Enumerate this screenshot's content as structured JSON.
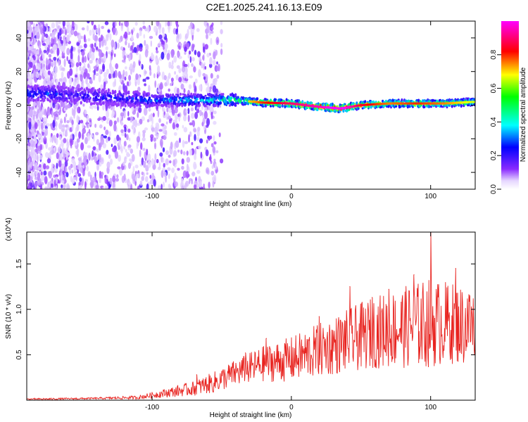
{
  "title": "C2E1.2025.241.16.13.E09",
  "chart_data": [
    {
      "type": "heatmap",
      "name": "spectrogram",
      "xlabel": "Height of straight line (km)",
      "ylabel": "Frequency (Hz)",
      "xlim": [
        -190,
        132
      ],
      "ylim": [
        -50,
        50
      ],
      "xticks": [
        -100,
        0,
        100
      ],
      "yticks": [
        -40,
        -20,
        0,
        20,
        40
      ],
      "colorbar": {
        "label": "Normalized spectral amplitude",
        "range": [
          0,
          1
        ],
        "ticks": [
          "0.0",
          "0.2",
          "0.4",
          "0.6",
          "0.8"
        ]
      },
      "ridge": [
        {
          "x": -180,
          "f": 7,
          "amp": 0.35
        },
        {
          "x": -160,
          "f": 6,
          "amp": 0.3
        },
        {
          "x": -140,
          "f": 5,
          "amp": 0.3
        },
        {
          "x": -120,
          "f": 4,
          "amp": 0.3
        },
        {
          "x": -100,
          "f": 3,
          "amp": 0.35
        },
        {
          "x": -80,
          "f": 3,
          "amp": 0.4
        },
        {
          "x": -60,
          "f": 3,
          "amp": 0.45
        },
        {
          "x": -40,
          "f": 3,
          "amp": 0.55
        },
        {
          "x": -20,
          "f": 1.5,
          "amp": 0.75
        },
        {
          "x": 0,
          "f": 1,
          "amp": 0.85
        },
        {
          "x": 20,
          "f": -1,
          "amp": 0.9
        },
        {
          "x": 35,
          "f": -2,
          "amp": 1.0
        },
        {
          "x": 50,
          "f": 0,
          "amp": 0.8
        },
        {
          "x": 70,
          "f": 1,
          "amp": 0.7
        },
        {
          "x": 90,
          "f": 1,
          "amp": 0.75
        },
        {
          "x": 110,
          "f": 1,
          "amp": 0.7
        },
        {
          "x": 132,
          "f": 2,
          "amp": 0.6
        }
      ]
    },
    {
      "type": "line",
      "name": "snr",
      "xlabel": "Height of straight line (km)",
      "ylabel": "SNR (10 * v/v)",
      "exponent_label": "(x10^4)",
      "xlim": [
        -190,
        132
      ],
      "ylim": [
        0,
        1.85
      ],
      "xticks": [
        -100,
        0,
        100
      ],
      "yticks": [
        "0.5",
        "1.0",
        "1.5"
      ],
      "color": "#e8231f",
      "envelope": {
        "x": [
          -190,
          -140,
          -110,
          -90,
          -70,
          -55,
          -40,
          -20,
          0,
          20,
          40,
          60,
          80,
          100,
          115,
          132
        ],
        "mean": [
          0.01,
          0.02,
          0.03,
          0.08,
          0.13,
          0.2,
          0.3,
          0.4,
          0.45,
          0.55,
          0.65,
          0.75,
          0.8,
          0.85,
          0.85,
          0.8
        ],
        "spread": [
          0.01,
          0.01,
          0.02,
          0.05,
          0.08,
          0.12,
          0.15,
          0.2,
          0.25,
          0.3,
          0.35,
          0.4,
          0.45,
          0.5,
          0.45,
          0.45
        ]
      },
      "peaks": [
        {
          "x": -68,
          "y": 0.28
        },
        {
          "x": -33,
          "y": 0.52
        },
        {
          "x": -18,
          "y": 0.68
        },
        {
          "x": 20,
          "y": 0.92
        },
        {
          "x": 42,
          "y": 1.25
        },
        {
          "x": 58,
          "y": 1.13
        },
        {
          "x": 70,
          "y": 1.22
        },
        {
          "x": 88,
          "y": 1.38
        },
        {
          "x": 100,
          "y": 1.85
        },
        {
          "x": 118,
          "y": 1.45
        },
        {
          "x": 128,
          "y": 1.15
        }
      ]
    }
  ]
}
